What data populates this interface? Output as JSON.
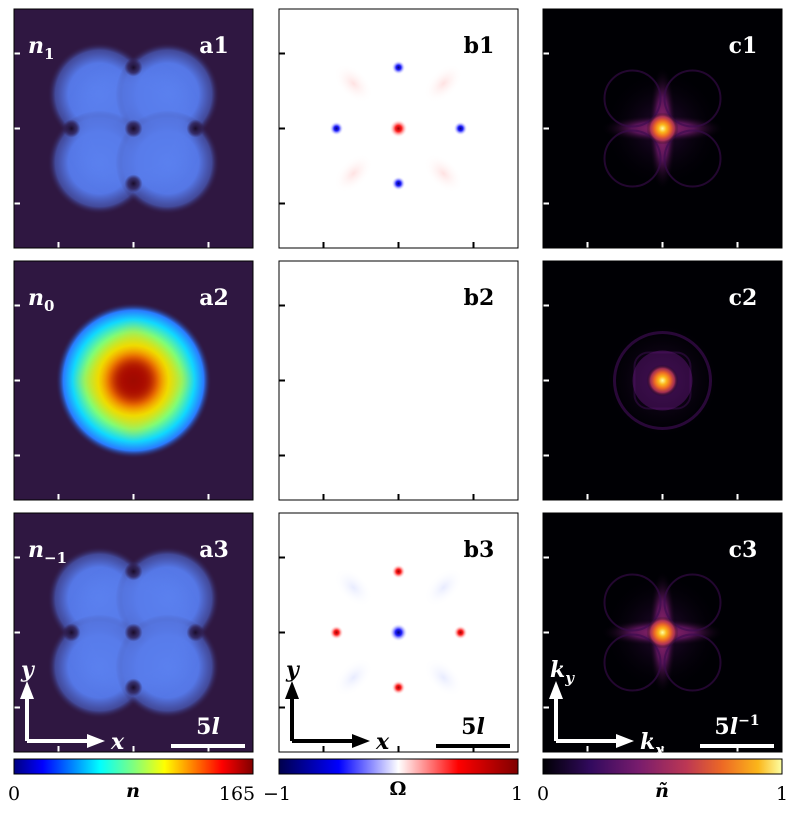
{
  "chart_data": [
    {
      "type": "heatmap",
      "quantity": "density",
      "colormap": "jet",
      "panels": [
        {
          "id": "a1",
          "label": "a1",
          "component_label": "n",
          "component_sub": "1",
          "pattern": "four-lobe",
          "peak_fraction": 0.32,
          "vortex_cores": [
            "center",
            "left",
            "right",
            "top",
            "bottom"
          ]
        },
        {
          "id": "a2",
          "label": "a2",
          "component_label": "n",
          "component_sub": "0",
          "pattern": "diamond",
          "peak_fraction": 1.0,
          "vortex_cores": []
        },
        {
          "id": "a3",
          "label": "a3",
          "component_label": "n",
          "component_sub": "−1",
          "pattern": "four-lobe",
          "peak_fraction": 0.32,
          "vortex_cores": [
            "center",
            "left",
            "right",
            "top",
            "bottom"
          ]
        }
      ],
      "colorbar": {
        "label": "n",
        "min": 0,
        "max": 165,
        "tick_labels": [
          "0",
          "165"
        ]
      },
      "axes": {
        "x": "x",
        "y": "y"
      },
      "scale_bar": "5l"
    },
    {
      "type": "heatmap",
      "quantity": "vorticity",
      "colormap": "seismic",
      "panels": [
        {
          "id": "b1",
          "label": "b1",
          "spots": [
            {
              "pos": "center",
              "value": 1.0
            },
            {
              "pos": "left",
              "value": -0.9
            },
            {
              "pos": "right",
              "value": -0.9
            },
            {
              "pos": "top",
              "value": -0.9
            },
            {
              "pos": "bottom",
              "value": -0.9
            }
          ]
        },
        {
          "id": "b2",
          "label": "b2",
          "spots": []
        },
        {
          "id": "b3",
          "label": "b3",
          "spots": [
            {
              "pos": "center",
              "value": -1.0
            },
            {
              "pos": "left",
              "value": 0.9
            },
            {
              "pos": "right",
              "value": 0.9
            },
            {
              "pos": "top",
              "value": 0.9
            },
            {
              "pos": "bottom",
              "value": 0.9
            }
          ]
        }
      ],
      "colorbar": {
        "label": "Ω",
        "min": -1,
        "max": 1,
        "tick_labels": [
          "−1",
          "1"
        ]
      },
      "axes": {
        "x": "x",
        "y": "y"
      },
      "scale_bar": "5l"
    },
    {
      "type": "heatmap",
      "quantity": "momentum-space density",
      "colormap": "inferno",
      "panels": [
        {
          "id": "c1",
          "label": "c1",
          "pattern": "cross",
          "peak_fraction": 1.0
        },
        {
          "id": "c2",
          "label": "c2",
          "pattern": "rings",
          "peak_fraction": 1.0
        },
        {
          "id": "c3",
          "label": "c3",
          "pattern": "cross",
          "peak_fraction": 1.0
        }
      ],
      "colorbar": {
        "label": "ñ",
        "min": 0,
        "max": 1,
        "tick_labels": [
          "0",
          "1"
        ]
      },
      "axes": {
        "x": "k",
        "x_sub": "x",
        "y": "k",
        "y_sub": "y"
      },
      "scale_bar": "5l",
      "scale_bar_sup": "−1"
    }
  ],
  "colors": {
    "density_background": "#2f1741",
    "momentum_background": "#000004",
    "vorticity_background": "#ffffff"
  }
}
